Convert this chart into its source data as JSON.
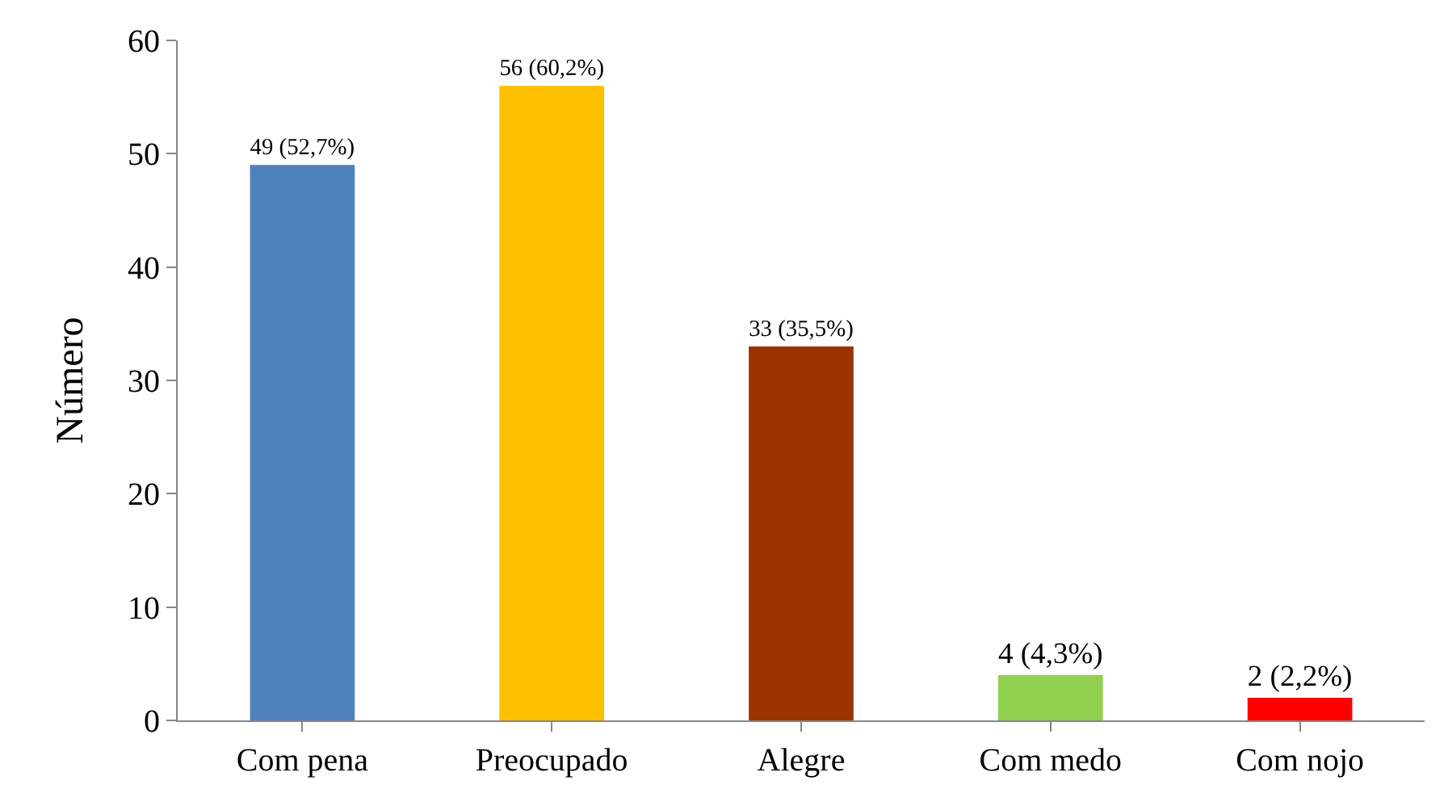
{
  "chart_data": {
    "type": "bar",
    "ylabel": "Número",
    "categories": [
      "Com pena",
      "Preocupado",
      "Alegre",
      "Com medo",
      "Com nojo"
    ],
    "values": [
      49,
      56,
      33,
      4,
      2
    ],
    "colors": [
      "#4f81bd",
      "#ffc000",
      "#993300",
      "#92d050",
      "#ff0000"
    ],
    "value_labels": [
      "49 (52,7%)",
      "56 (60,2%)",
      "33 (35,5%)",
      "4 (4,3%)",
      "2 (2,2%)"
    ],
    "ylim": [
      0,
      60
    ],
    "yticks": [
      0,
      10,
      20,
      30,
      40,
      50,
      60
    ],
    "grid": false,
    "legend": false
  }
}
